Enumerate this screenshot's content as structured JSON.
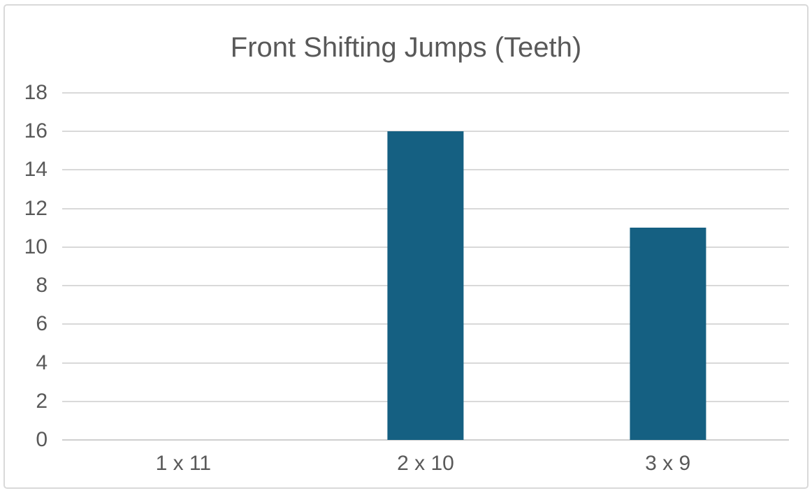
{
  "chart_data": {
    "type": "bar",
    "title": "Front Shifting Jumps (Teeth)",
    "categories": [
      "1 x 11",
      "2 x 10",
      "3 x 9"
    ],
    "values": [
      0,
      16,
      11
    ],
    "xlabel": "",
    "ylabel": "",
    "ylim": [
      0,
      18
    ],
    "yticks": [
      0,
      2,
      4,
      6,
      8,
      10,
      12,
      14,
      16,
      18
    ],
    "grid": true,
    "legend": "none",
    "colors": {
      "bar": "#156082",
      "gridline": "#d9d9d9",
      "axis_line": "#cfcfcf",
      "label": "#595959",
      "title": "#595959",
      "border": "#d9d9d9",
      "background": "#ffffff"
    }
  }
}
